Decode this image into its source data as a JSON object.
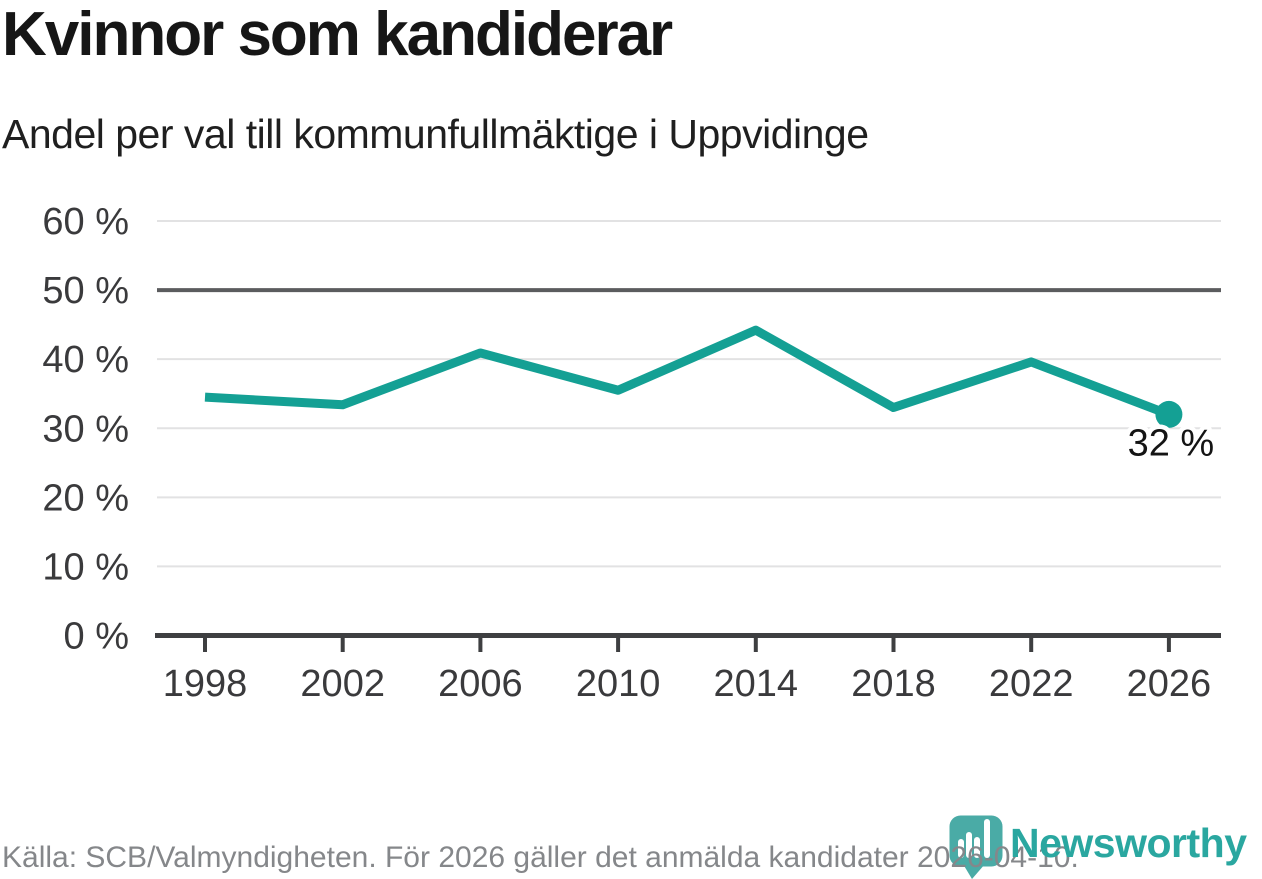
{
  "title": "Kvinnor som kandiderar",
  "subtitle": "Andel per val till kommunfullmäktige i Uppvidinge",
  "footer": {
    "source_text": "Källa: SCB/Valmyndigheten. För 2026 gäller det anmälda kandidater 2026-04-10."
  },
  "logo": {
    "wordmark": "Newsworthy"
  },
  "colors": {
    "title_text": "#161616",
    "subtitle_text": "#1f1f1f",
    "label": "#3a3a3c",
    "axis": "#3e3f41",
    "grid": "#e2e2e3",
    "grid_strong": "#5b5c5e",
    "series": "#14a094",
    "annotation": "#141414",
    "footer_text": "#85878a",
    "logo_icon": "#4aaba6",
    "logo_wordmark": "#2aa7a0"
  },
  "chart_data": {
    "type": "line",
    "title": "Kvinnor som kandiderar",
    "subtitle": "Andel per val till kommunfullmäktige i Uppvidinge",
    "categories": [
      "1998",
      "2002",
      "2006",
      "2010",
      "2014",
      "2018",
      "2022",
      "2026"
    ],
    "series": [
      {
        "values": [
          34.5,
          33.4,
          40.9,
          35.5,
          44.2,
          33.0,
          39.6,
          32.0
        ]
      }
    ],
    "xlabel": "",
    "ylabel": "",
    "ylim": [
      0,
      60
    ],
    "yticks": [
      0,
      10,
      20,
      30,
      40,
      50,
      60
    ],
    "ytick_suffix": " %",
    "highlight_gridline": 50,
    "grid": true,
    "legend_position": "none",
    "last_point_label": "32 %"
  }
}
